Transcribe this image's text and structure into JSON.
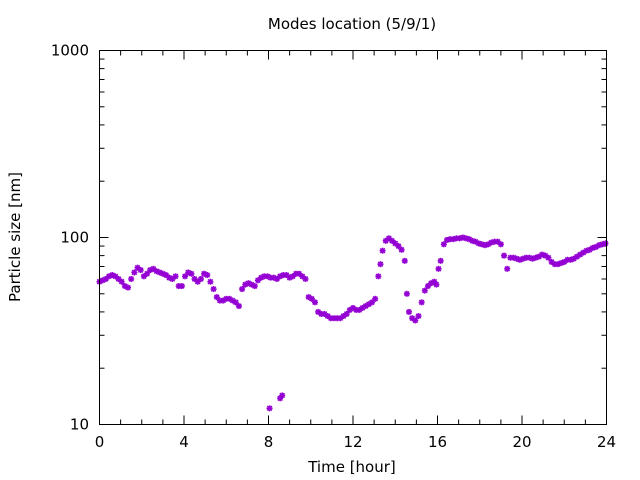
{
  "chart_data": {
    "type": "scatter",
    "title": "Modes location (5/9/1)",
    "xlabel": "Time [hour]",
    "ylabel": "Particle size [nm]",
    "xlim": [
      0,
      24
    ],
    "ylim": [
      10,
      1000
    ],
    "yscale": "log",
    "xticks": [
      "0",
      "4",
      "8",
      "12",
      "16",
      "20",
      "24"
    ],
    "yticks": [
      "10",
      "100",
      "1000"
    ],
    "grid": false,
    "legend": "none",
    "marker_color": "#9400d3",
    "series": [
      {
        "points": [
          [
            0.0,
            58
          ],
          [
            0.15,
            59
          ],
          [
            0.3,
            60
          ],
          [
            0.45,
            62
          ],
          [
            0.6,
            63
          ],
          [
            0.75,
            62
          ],
          [
            0.9,
            60
          ],
          [
            1.05,
            58
          ],
          [
            1.2,
            55
          ],
          [
            1.35,
            54
          ],
          [
            1.5,
            60
          ],
          [
            1.65,
            65
          ],
          [
            1.8,
            69
          ],
          [
            1.95,
            67
          ],
          [
            2.1,
            62
          ],
          [
            2.25,
            64
          ],
          [
            2.4,
            67
          ],
          [
            2.55,
            68
          ],
          [
            2.7,
            66
          ],
          [
            2.85,
            65
          ],
          [
            3.0,
            64
          ],
          [
            3.15,
            63
          ],
          [
            3.3,
            61
          ],
          [
            3.45,
            60
          ],
          [
            3.6,
            62
          ],
          [
            3.75,
            55
          ],
          [
            3.9,
            55
          ],
          [
            4.05,
            62
          ],
          [
            4.2,
            65
          ],
          [
            4.35,
            64
          ],
          [
            4.5,
            60
          ],
          [
            4.65,
            58
          ],
          [
            4.8,
            60
          ],
          [
            4.95,
            64
          ],
          [
            5.1,
            63
          ],
          [
            5.25,
            58
          ],
          [
            5.4,
            53
          ],
          [
            5.55,
            48
          ],
          [
            5.7,
            46
          ],
          [
            5.85,
            46
          ],
          [
            6.0,
            47
          ],
          [
            6.15,
            47
          ],
          [
            6.3,
            46
          ],
          [
            6.45,
            45
          ],
          [
            6.6,
            43
          ],
          [
            6.75,
            53
          ],
          [
            6.9,
            56
          ],
          [
            7.05,
            57
          ],
          [
            7.2,
            56
          ],
          [
            7.35,
            55
          ],
          [
            7.5,
            59
          ],
          [
            7.65,
            61
          ],
          [
            7.8,
            62
          ],
          [
            7.95,
            62
          ],
          [
            8.1,
            61
          ],
          [
            8.25,
            61
          ],
          [
            8.4,
            60
          ],
          [
            8.55,
            62
          ],
          [
            8.7,
            63
          ],
          [
            8.85,
            63
          ],
          [
            9.0,
            61
          ],
          [
            9.15,
            62
          ],
          [
            9.3,
            64
          ],
          [
            9.45,
            64
          ],
          [
            9.6,
            62
          ],
          [
            9.75,
            60
          ],
          [
            9.9,
            48
          ],
          [
            10.05,
            47
          ],
          [
            10.2,
            45
          ],
          [
            10.35,
            40
          ],
          [
            10.5,
            39
          ],
          [
            10.65,
            39
          ],
          [
            10.8,
            38
          ],
          [
            10.95,
            37
          ],
          [
            11.1,
            37
          ],
          [
            11.25,
            37
          ],
          [
            11.4,
            37
          ],
          [
            11.55,
            38
          ],
          [
            11.7,
            39
          ],
          [
            11.85,
            41
          ],
          [
            12.0,
            42
          ],
          [
            12.15,
            41
          ],
          [
            12.3,
            41
          ],
          [
            12.45,
            42
          ],
          [
            12.6,
            43
          ],
          [
            12.75,
            44
          ],
          [
            12.9,
            45
          ],
          [
            13.05,
            47
          ],
          [
            13.2,
            62
          ],
          [
            13.3,
            72
          ],
          [
            13.4,
            85
          ],
          [
            13.55,
            96
          ],
          [
            13.7,
            99
          ],
          [
            13.85,
            96
          ],
          [
            14.0,
            93
          ],
          [
            14.15,
            90
          ],
          [
            14.3,
            86
          ],
          [
            14.45,
            75
          ],
          [
            14.55,
            50
          ],
          [
            14.65,
            40
          ],
          [
            14.8,
            37
          ],
          [
            14.95,
            36
          ],
          [
            15.1,
            38
          ],
          [
            15.25,
            45
          ],
          [
            15.4,
            52
          ],
          [
            15.55,
            55
          ],
          [
            15.7,
            57
          ],
          [
            15.85,
            58
          ],
          [
            15.95,
            56
          ],
          [
            16.05,
            68
          ],
          [
            16.15,
            75
          ],
          [
            16.3,
            92
          ],
          [
            16.45,
            97
          ],
          [
            16.6,
            98
          ],
          [
            16.75,
            98
          ],
          [
            16.9,
            99
          ],
          [
            17.05,
            99
          ],
          [
            17.2,
            100
          ],
          [
            17.35,
            99
          ],
          [
            17.5,
            98
          ],
          [
            17.65,
            96
          ],
          [
            17.8,
            95
          ],
          [
            17.95,
            93
          ],
          [
            18.1,
            92
          ],
          [
            18.25,
            91
          ],
          [
            18.4,
            92
          ],
          [
            18.55,
            94
          ],
          [
            18.7,
            95
          ],
          [
            18.85,
            95
          ],
          [
            19.0,
            92
          ],
          [
            19.15,
            80
          ],
          [
            19.3,
            68
          ],
          [
            19.45,
            78
          ],
          [
            19.6,
            78
          ],
          [
            19.75,
            77
          ],
          [
            19.9,
            76
          ],
          [
            20.05,
            77
          ],
          [
            20.2,
            78
          ],
          [
            20.35,
            78
          ],
          [
            20.5,
            77
          ],
          [
            20.65,
            78
          ],
          [
            20.8,
            79
          ],
          [
            20.95,
            81
          ],
          [
            21.1,
            80
          ],
          [
            21.25,
            78
          ],
          [
            21.4,
            74
          ],
          [
            21.55,
            72
          ],
          [
            21.7,
            72
          ],
          [
            21.85,
            73
          ],
          [
            22.0,
            74
          ],
          [
            22.15,
            76
          ],
          [
            22.3,
            76
          ],
          [
            22.45,
            77
          ],
          [
            22.6,
            79
          ],
          [
            22.75,
            81
          ],
          [
            22.9,
            83
          ],
          [
            23.05,
            85
          ],
          [
            23.2,
            86
          ],
          [
            23.35,
            88
          ],
          [
            23.5,
            89
          ],
          [
            23.65,
            91
          ],
          [
            23.8,
            92
          ],
          [
            23.95,
            93
          ],
          [
            8.05,
            12.2
          ],
          [
            8.55,
            13.8
          ],
          [
            8.65,
            14.3
          ]
        ]
      }
    ]
  }
}
